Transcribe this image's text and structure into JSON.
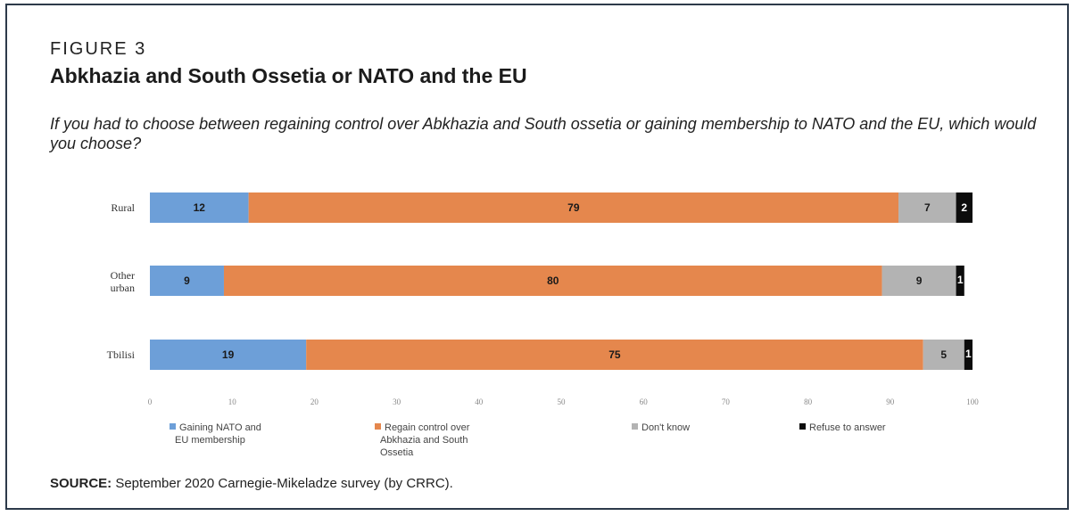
{
  "figure": {
    "label": "FIGURE 3",
    "title": "Abkhazia and South Ossetia or NATO and the EU",
    "question": "If you had to choose between regaining control over Abkhazia and South ossetia or gaining membership to NATO and the EU, which would you choose?",
    "source_label": "SOURCE:",
    "source_text": " September 2020 Carnegie-Mikeladze survey (by CRRC)."
  },
  "chart_data": {
    "type": "bar",
    "orientation": "horizontal",
    "stacked": true,
    "categories": [
      "Rural",
      "Other urban",
      "Tbilisi"
    ],
    "xlim": [
      0,
      100
    ],
    "x_ticks": [
      0,
      10,
      20,
      30,
      40,
      50,
      60,
      70,
      80,
      90,
      100
    ],
    "grid": false,
    "legend_position": "bottom",
    "series": [
      {
        "name": "Gaining NATO and EU membership",
        "values": [
          12,
          9,
          19
        ],
        "color": "#6d9fd8",
        "label_color": "#1a1a1a"
      },
      {
        "name": "Regain control over Abkhazia and South Ossetia",
        "values": [
          79,
          80,
          75
        ],
        "color": "#e5874d",
        "label_color": "#1a1a1a"
      },
      {
        "name": "Don't know",
        "values": [
          7,
          9,
          5
        ],
        "color": "#b3b3b3",
        "label_color": "#1a1a1a"
      },
      {
        "name": "Refuse to answer",
        "values": [
          2,
          1,
          1
        ],
        "color": "#0c0c0c",
        "label_color": "#ffffff"
      }
    ]
  }
}
